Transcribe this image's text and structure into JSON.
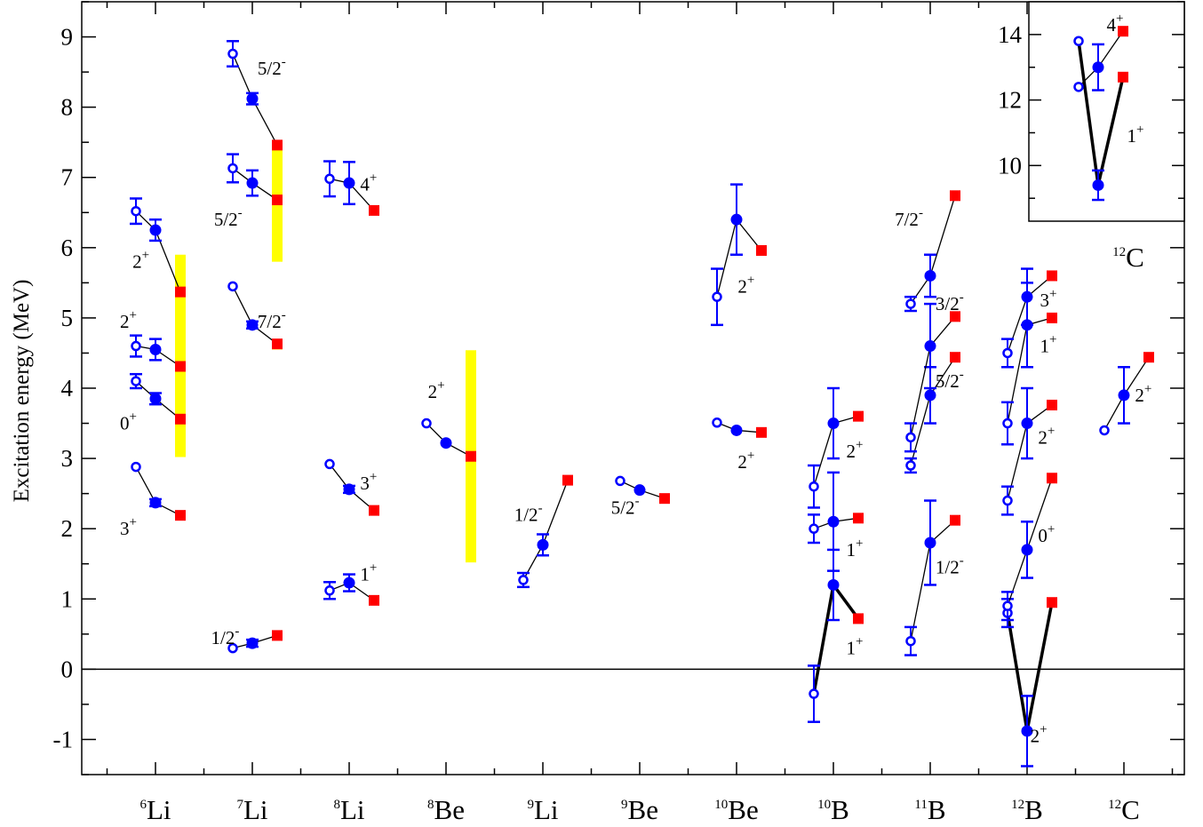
{
  "chart_data": {
    "type": "scatter",
    "ylabel": "Excitation energy (MeV)",
    "ylim": [
      -1.5,
      9.5
    ],
    "yticks": [
      "-1",
      "0",
      "1",
      "2",
      "3",
      "4",
      "5",
      "6",
      "7",
      "8",
      "9"
    ],
    "categories": [
      {
        "mass": "6",
        "el": "Li"
      },
      {
        "mass": "7",
        "el": "Li"
      },
      {
        "mass": "8",
        "el": "Li"
      },
      {
        "mass": "8",
        "el": "Be"
      },
      {
        "mass": "9",
        "el": "Li"
      },
      {
        "mass": "9",
        "el": "Be"
      },
      {
        "mass": "10",
        "el": "Be"
      },
      {
        "mass": "10",
        "el": "B"
      },
      {
        "mass": "11",
        "el": "B"
      },
      {
        "mass": "12",
        "el": "B"
      },
      {
        "mass": "12",
        "el": "C"
      }
    ],
    "levels": [
      {
        "cat": 0,
        "label": "3",
        "sign": "+",
        "lx": -0.28,
        "ly": 2.0,
        "open": 2.88,
        "openErr": 0.0,
        "filled": 2.37,
        "filledErr": 0.05,
        "exp": 2.19
      },
      {
        "cat": 0,
        "label": "0",
        "sign": "+",
        "lx": -0.28,
        "ly": 3.5,
        "open": 4.1,
        "openErr": 0.1,
        "filled": 3.85,
        "filledErr": 0.08,
        "exp": 3.56
      },
      {
        "cat": 0,
        "label": "2",
        "sign": "+",
        "lx": -0.28,
        "ly": 4.95,
        "open": 4.6,
        "openErr": 0.15,
        "filled": 4.55,
        "filledErr": 0.15,
        "exp": 4.31
      },
      {
        "cat": 0,
        "label": "2",
        "sign": "+",
        "lx": -0.15,
        "ly": 5.8,
        "open": 6.52,
        "openErr": 0.18,
        "filled": 6.25,
        "filledErr": 0.15,
        "exp": 5.37
      },
      {
        "cat": 1,
        "label": "1/2",
        "sign": "-",
        "lx": -0.28,
        "ly": 0.45,
        "open": 0.3,
        "openErr": 0.0,
        "filled": 0.37,
        "filledErr": 0.05,
        "exp": 0.48
      },
      {
        "cat": 1,
        "label": "7/2",
        "sign": "-",
        "lx": 0.2,
        "ly": 4.95,
        "open": 5.45,
        "openErr": 0.0,
        "filled": 4.9,
        "filledErr": 0.05,
        "exp": 4.63
      },
      {
        "cat": 1,
        "label": "5/2",
        "sign": "-",
        "lx": -0.25,
        "ly": 6.4,
        "open": 7.13,
        "openErr": 0.2,
        "filled": 6.92,
        "filledErr": 0.18,
        "exp": 6.68
      },
      {
        "cat": 1,
        "label": "5/2",
        "sign": "-",
        "lx": 0.2,
        "ly": 8.55,
        "open": 8.76,
        "openErr": 0.18,
        "filled": 8.12,
        "filledErr": 0.08,
        "exp": 7.46
      },
      {
        "cat": 2,
        "label": "1",
        "sign": "+",
        "lx": 0.2,
        "ly": 1.35,
        "open": 1.12,
        "openErr": 0.12,
        "filled": 1.23,
        "filledErr": 0.12,
        "exp": 0.98
      },
      {
        "cat": 2,
        "label": "3",
        "sign": "+",
        "lx": 0.2,
        "ly": 2.65,
        "open": 2.92,
        "openErr": 0.0,
        "filled": 2.56,
        "filledErr": 0.05,
        "exp": 2.26
      },
      {
        "cat": 2,
        "label": "4",
        "sign": "+",
        "lx": 0.2,
        "ly": 6.9,
        "open": 6.98,
        "openErr": 0.25,
        "filled": 6.92,
        "filledErr": 0.3,
        "exp": 6.53
      },
      {
        "cat": 3,
        "label": "2",
        "sign": "+",
        "lx": -0.1,
        "ly": 3.95,
        "open": 3.5,
        "openErr": 0.0,
        "filled": 3.22,
        "filledErr": 0.0,
        "exp": 3.03
      },
      {
        "cat": 4,
        "label": "1/2",
        "sign": "-",
        "lx": -0.15,
        "ly": 2.2,
        "open": 1.27,
        "openErr": 0.1,
        "filled": 1.77,
        "filledErr": 0.15,
        "exp": 2.69
      },
      {
        "cat": 5,
        "label": "5/2",
        "sign": "-",
        "lx": -0.15,
        "ly": 2.3,
        "open": 2.68,
        "openErr": 0.0,
        "filled": 2.55,
        "filledErr": 0.0,
        "exp": 2.43
      },
      {
        "cat": 6,
        "label": "2",
        "sign": "+",
        "lx": 0.1,
        "ly": 2.95,
        "open": 3.51,
        "openErr": 0.0,
        "filled": 3.4,
        "filledErr": 0.0,
        "exp": 3.37
      },
      {
        "cat": 6,
        "label": "2",
        "sign": "+",
        "lx": 0.1,
        "ly": 5.45,
        "open": 5.3,
        "openErr": 0.4,
        "filled": 6.4,
        "filledErr": 0.5,
        "exp": 5.96
      },
      {
        "cat": 7,
        "label": "1",
        "sign": "+",
        "lx": 0.22,
        "ly": 0.3,
        "open": -0.35,
        "openErr": 0.4,
        "filled": 1.2,
        "filledErr": 0.5,
        "exp": 0.72,
        "bold": true
      },
      {
        "cat": 7,
        "label": "1",
        "sign": "+",
        "lx": 0.22,
        "ly": 1.7,
        "open": 2.0,
        "openErr": 0.2,
        "filled": 2.1,
        "filledErr": 0.7,
        "exp": 2.15
      },
      {
        "cat": 7,
        "label": "2",
        "sign": "+",
        "lx": 0.22,
        "ly": 3.1,
        "open": 2.6,
        "openErr": 0.3,
        "filled": 3.5,
        "filledErr": 0.5,
        "exp": 3.6
      },
      {
        "cat": 8,
        "label": "1/2",
        "sign": "-",
        "lx": 0.2,
        "ly": 1.45,
        "open": 0.4,
        "openErr": 0.2,
        "filled": 1.8,
        "filledErr": 0.6,
        "exp": 2.12
      },
      {
        "cat": 8,
        "label": "5/2",
        "sign": "-",
        "lx": 0.2,
        "ly": 4.1,
        "open": 2.9,
        "openErr": 0.1,
        "filled": 3.9,
        "filledErr": 0.4,
        "exp": 4.44
      },
      {
        "cat": 8,
        "label": "3/2",
        "sign": "-",
        "lx": 0.2,
        "ly": 5.2,
        "open": 3.3,
        "openErr": 0.2,
        "filled": 4.6,
        "filledErr": 0.6,
        "exp": 5.02
      },
      {
        "cat": 8,
        "label": "7/2",
        "sign": "-",
        "lx": -0.22,
        "ly": 6.4,
        "open": 5.2,
        "openErr": 0.1,
        "filled": 5.6,
        "filledErr": 0.3,
        "exp": 6.74
      },
      {
        "cat": 9,
        "label": "2",
        "sign": "+",
        "lx": 0.12,
        "ly": -0.95,
        "open": 0.8,
        "openErr": 0.2,
        "filled": -0.88,
        "filledErr": 0.5,
        "exp": 0.95,
        "bold": true
      },
      {
        "cat": 9,
        "label": "0",
        "sign": "+",
        "lx": 0.2,
        "ly": 1.9,
        "open": 0.9,
        "openErr": 0.2,
        "filled": 1.7,
        "filledErr": 0.4,
        "exp": 2.72
      },
      {
        "cat": 9,
        "label": "2",
        "sign": "+",
        "lx": 0.2,
        "ly": 3.3,
        "open": 2.4,
        "openErr": 0.2,
        "filled": 3.5,
        "filledErr": 0.5,
        "exp": 3.76
      },
      {
        "cat": 9,
        "label": "1",
        "sign": "+",
        "lx": 0.22,
        "ly": 4.6,
        "open": 3.5,
        "openErr": 0.3,
        "filled": 4.9,
        "filledErr": 0.6,
        "exp": 5.0
      },
      {
        "cat": 9,
        "label": "3",
        "sign": "+",
        "lx": 0.22,
        "ly": 5.25,
        "open": 4.5,
        "openErr": 0.2,
        "filled": 5.3,
        "filledErr": 0.4,
        "exp": 5.6
      },
      {
        "cat": 10,
        "label": "2",
        "sign": "+",
        "lx": 0.2,
        "ly": 3.9,
        "open": 3.4,
        "openErr": 0.0,
        "filled": 3.9,
        "filledErr": 0.4,
        "exp": 4.44
      }
    ],
    "bands": [
      {
        "cat": 0,
        "low": 3.02,
        "high": 5.9
      },
      {
        "cat": 1,
        "low": 5.8,
        "high": 7.5
      },
      {
        "cat": 1,
        "low": 4.55,
        "high": 4.7
      },
      {
        "cat": 3,
        "low": 1.52,
        "high": 4.54
      }
    ],
    "inset": {
      "ylim": [
        8.3,
        15.0
      ],
      "yticks": [
        "10",
        "12",
        "14"
      ],
      "label": {
        "mass": "12",
        "el": "C"
      },
      "levels": [
        {
          "label": "1",
          "sign": "+",
          "open": 13.8,
          "openErr": 0.0,
          "filled": 9.4,
          "filledErr": 0.45,
          "exp": 12.7,
          "bold": true
        },
        {
          "label": "4",
          "sign": "+",
          "open": 12.4,
          "openErr": 0.0,
          "filled": 13.0,
          "filledErr": 0.7,
          "exp": 14.1
        }
      ]
    }
  }
}
